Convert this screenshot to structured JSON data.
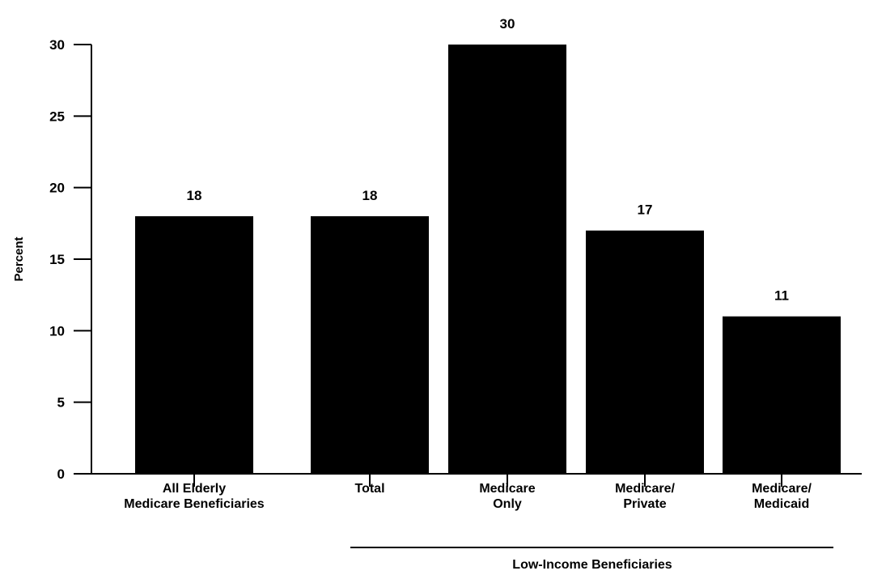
{
  "chart_data": {
    "type": "bar",
    "title": "",
    "xlabel": "",
    "ylabel": "Percent",
    "ylim": [
      0,
      30
    ],
    "yticks": [
      0,
      5,
      10,
      15,
      20,
      25,
      30
    ],
    "grid": false,
    "bar_color": "#000000",
    "categories": [
      [
        "All Elderly",
        "Medicare Beneficiaries"
      ],
      [
        "Total"
      ],
      [
        "Medicare",
        "Only"
      ],
      [
        "Medicare/",
        "Private"
      ],
      [
        "Medicare/",
        "Medicaid"
      ]
    ],
    "values": [
      18,
      18,
      30,
      17,
      11
    ],
    "data_labels": [
      "18",
      "18",
      "30",
      "17",
      "11"
    ],
    "group": {
      "label": "Low-Income Beneficiaries",
      "category_indices": [
        1,
        2,
        3,
        4
      ]
    }
  }
}
